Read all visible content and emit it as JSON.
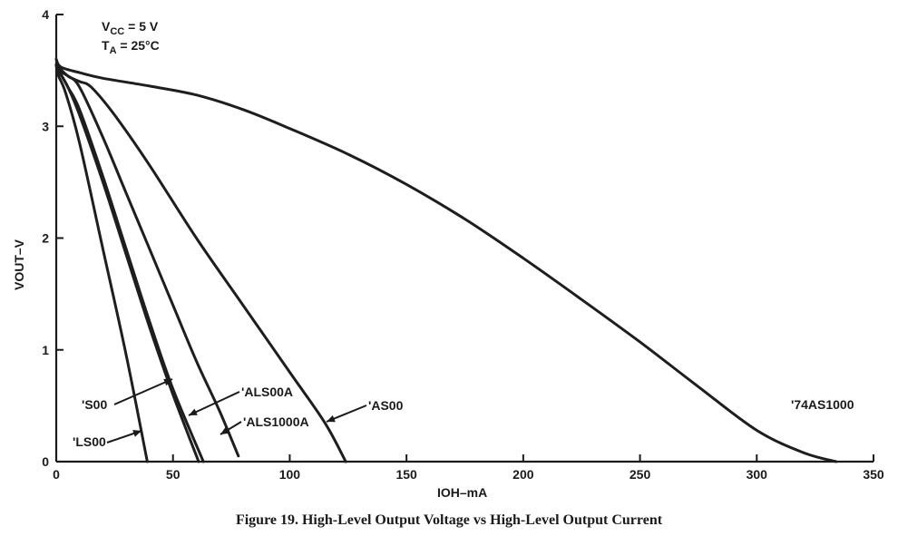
{
  "caption": "Figure 19. High-Level Output Voltage vs High-Level Output Current",
  "conditions": {
    "vcc": "5 V",
    "ta": "25°C"
  },
  "chart_data": {
    "type": "line",
    "xlabel": "IOH–mA",
    "ylabel": "VOUT–V",
    "xlim": [
      0,
      350
    ],
    "ylim": [
      0,
      4
    ],
    "x_ticks": [
      0,
      50,
      100,
      150,
      200,
      250,
      300,
      350
    ],
    "y_ticks": [
      0,
      1,
      2,
      3,
      4
    ],
    "grid": false,
    "series": [
      {
        "name": "'LS00",
        "x": [
          0,
          1,
          4,
          10,
          20,
          30,
          39
        ],
        "y": [
          3.55,
          3.45,
          3.3,
          2.85,
          1.9,
          0.95,
          0
        ]
      },
      {
        "name": "'S00",
        "x": [
          0,
          1,
          5,
          10,
          20,
          30,
          40,
          50,
          61
        ],
        "y": [
          3.55,
          3.5,
          3.35,
          3.1,
          2.5,
          1.85,
          1.2,
          0.6,
          0
        ]
      },
      {
        "name": "'ALS00A",
        "x": [
          0,
          1,
          5,
          10,
          20,
          30,
          40,
          50,
          63
        ],
        "y": [
          3.55,
          3.5,
          3.35,
          3.15,
          2.55,
          1.9,
          1.25,
          0.65,
          0
        ]
      },
      {
        "name": "'ALS1000A",
        "x": [
          0,
          1,
          5,
          10,
          20,
          30,
          40,
          50,
          60,
          70,
          78
        ],
        "y": [
          3.55,
          3.5,
          3.45,
          3.35,
          2.9,
          2.4,
          1.9,
          1.4,
          0.9,
          0.45,
          0.05
        ]
      },
      {
        "name": "'AS00",
        "x": [
          0,
          5,
          10,
          15,
          25,
          40,
          60,
          80,
          100,
          115,
          124
        ],
        "y": [
          3.55,
          3.45,
          3.4,
          3.35,
          3.1,
          2.65,
          2.0,
          1.4,
          0.8,
          0.35,
          0
        ]
      },
      {
        "name": "'74AS1000",
        "x": [
          0,
          2,
          10,
          20,
          40,
          60,
          80,
          100,
          125,
          150,
          175,
          200,
          225,
          250,
          275,
          300,
          320,
          334
        ],
        "y": [
          3.6,
          3.53,
          3.48,
          3.43,
          3.36,
          3.28,
          3.15,
          2.98,
          2.75,
          2.48,
          2.17,
          1.82,
          1.45,
          1.07,
          0.67,
          0.28,
          0.08,
          0
        ]
      }
    ],
    "annotations": [
      "'S00",
      "'LS00",
      "'ALS00A",
      "'ALS1000A",
      "'AS00",
      "'74AS1000"
    ]
  }
}
